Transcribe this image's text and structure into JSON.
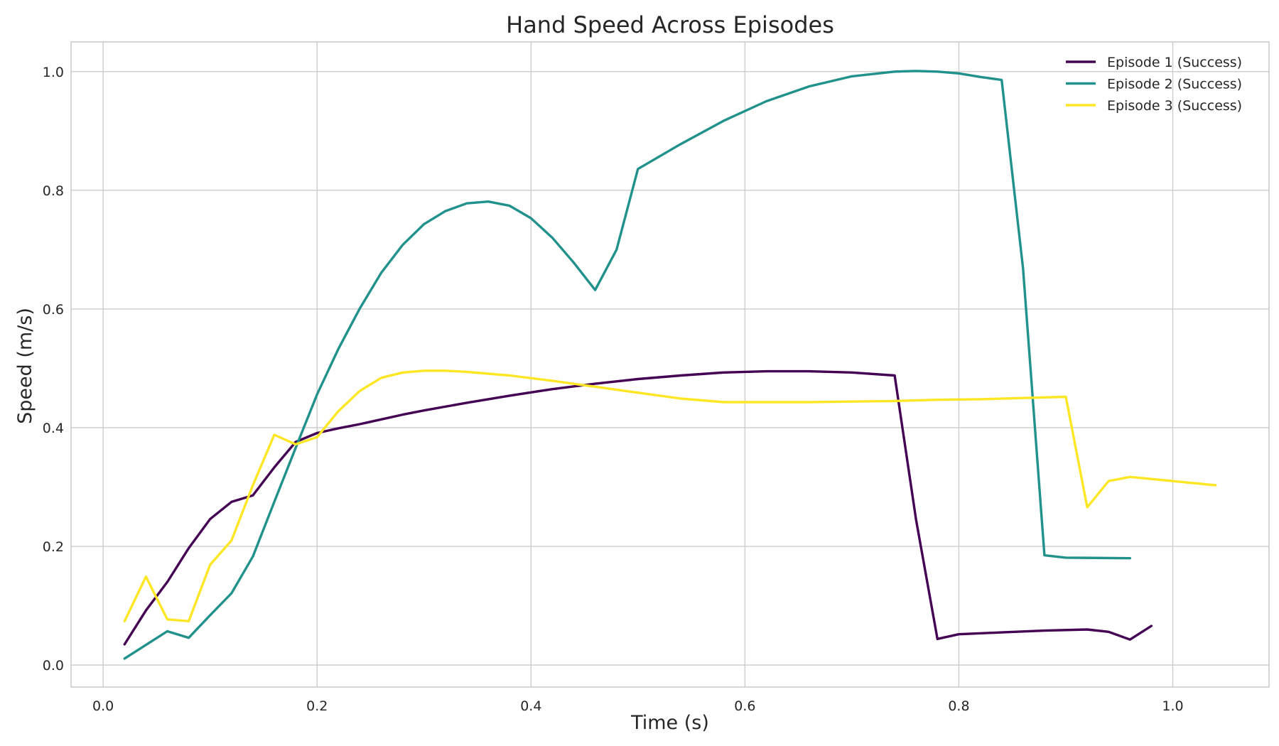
{
  "chart_data": {
    "type": "line",
    "title": "Hand Speed Across Episodes",
    "xlabel": "Time (s)",
    "ylabel": "Speed (m/s)",
    "xlim": [
      -0.03,
      1.09
    ],
    "ylim": [
      -0.037,
      1.05
    ],
    "xticks": [
      0.0,
      0.2,
      0.4,
      0.6,
      0.8,
      1.0
    ],
    "xtick_labels": [
      "0.0",
      "0.2",
      "0.4",
      "0.6",
      "0.8",
      "1.0"
    ],
    "yticks": [
      0.0,
      0.2,
      0.4,
      0.6,
      0.8,
      1.0
    ],
    "ytick_labels": [
      "0.0",
      "0.2",
      "0.4",
      "0.6",
      "0.8",
      "1.0"
    ],
    "grid": true,
    "legend_position": "top-right",
    "series": [
      {
        "name": "Episode 1 (Success)",
        "color": "#440154",
        "x": [
          0.02,
          0.04,
          0.06,
          0.08,
          0.1,
          0.12,
          0.14,
          0.16,
          0.18,
          0.2,
          0.22,
          0.24,
          0.26,
          0.28,
          0.3,
          0.34,
          0.38,
          0.42,
          0.46,
          0.5,
          0.54,
          0.58,
          0.62,
          0.66,
          0.7,
          0.74,
          0.76,
          0.78,
          0.8,
          0.84,
          0.88,
          0.92,
          0.94,
          0.96,
          0.98
        ],
        "y": [
          0.035,
          0.092,
          0.14,
          0.197,
          0.246,
          0.275,
          0.286,
          0.333,
          0.376,
          0.391,
          0.399,
          0.406,
          0.414,
          0.422,
          0.429,
          0.442,
          0.454,
          0.465,
          0.474,
          0.482,
          0.488,
          0.493,
          0.495,
          0.495,
          0.493,
          0.488,
          0.245,
          0.044,
          0.052,
          0.055,
          0.058,
          0.06,
          0.056,
          0.043,
          0.066
        ]
      },
      {
        "name": "Episode 2 (Success)",
        "color": "#21918c",
        "x": [
          0.02,
          0.04,
          0.06,
          0.08,
          0.1,
          0.12,
          0.14,
          0.16,
          0.18,
          0.2,
          0.22,
          0.24,
          0.26,
          0.28,
          0.3,
          0.32,
          0.34,
          0.36,
          0.38,
          0.4,
          0.42,
          0.44,
          0.46,
          0.48,
          0.5,
          0.54,
          0.58,
          0.62,
          0.66,
          0.7,
          0.74,
          0.76,
          0.78,
          0.8,
          0.82,
          0.84,
          0.86,
          0.88,
          0.9,
          0.96
        ],
        "y": [
          0.011,
          0.034,
          0.057,
          0.046,
          0.084,
          0.121,
          0.183,
          0.275,
          0.366,
          0.456,
          0.533,
          0.601,
          0.661,
          0.708,
          0.743,
          0.765,
          0.778,
          0.781,
          0.774,
          0.753,
          0.72,
          0.678,
          0.632,
          0.7,
          0.836,
          0.878,
          0.917,
          0.95,
          0.975,
          0.992,
          1.0,
          1.001,
          1.0,
          0.997,
          0.991,
          0.986,
          0.668,
          0.185,
          0.181,
          0.18
        ]
      },
      {
        "name": "Episode 3 (Success)",
        "color": "#fde725",
        "x": [
          0.02,
          0.04,
          0.06,
          0.08,
          0.1,
          0.12,
          0.14,
          0.16,
          0.18,
          0.2,
          0.22,
          0.24,
          0.26,
          0.28,
          0.3,
          0.32,
          0.34,
          0.38,
          0.42,
          0.46,
          0.5,
          0.54,
          0.58,
          0.62,
          0.66,
          0.7,
          0.74,
          0.78,
          0.82,
          0.86,
          0.9,
          0.92,
          0.94,
          0.96,
          1.0,
          1.04
        ],
        "y": [
          0.074,
          0.149,
          0.077,
          0.074,
          0.169,
          0.21,
          0.303,
          0.388,
          0.372,
          0.384,
          0.428,
          0.462,
          0.484,
          0.493,
          0.496,
          0.496,
          0.494,
          0.488,
          0.479,
          0.469,
          0.459,
          0.449,
          0.443,
          0.443,
          0.443,
          0.444,
          0.445,
          0.447,
          0.448,
          0.45,
          0.452,
          0.266,
          0.31,
          0.317,
          0.31,
          0.303
        ]
      }
    ]
  }
}
